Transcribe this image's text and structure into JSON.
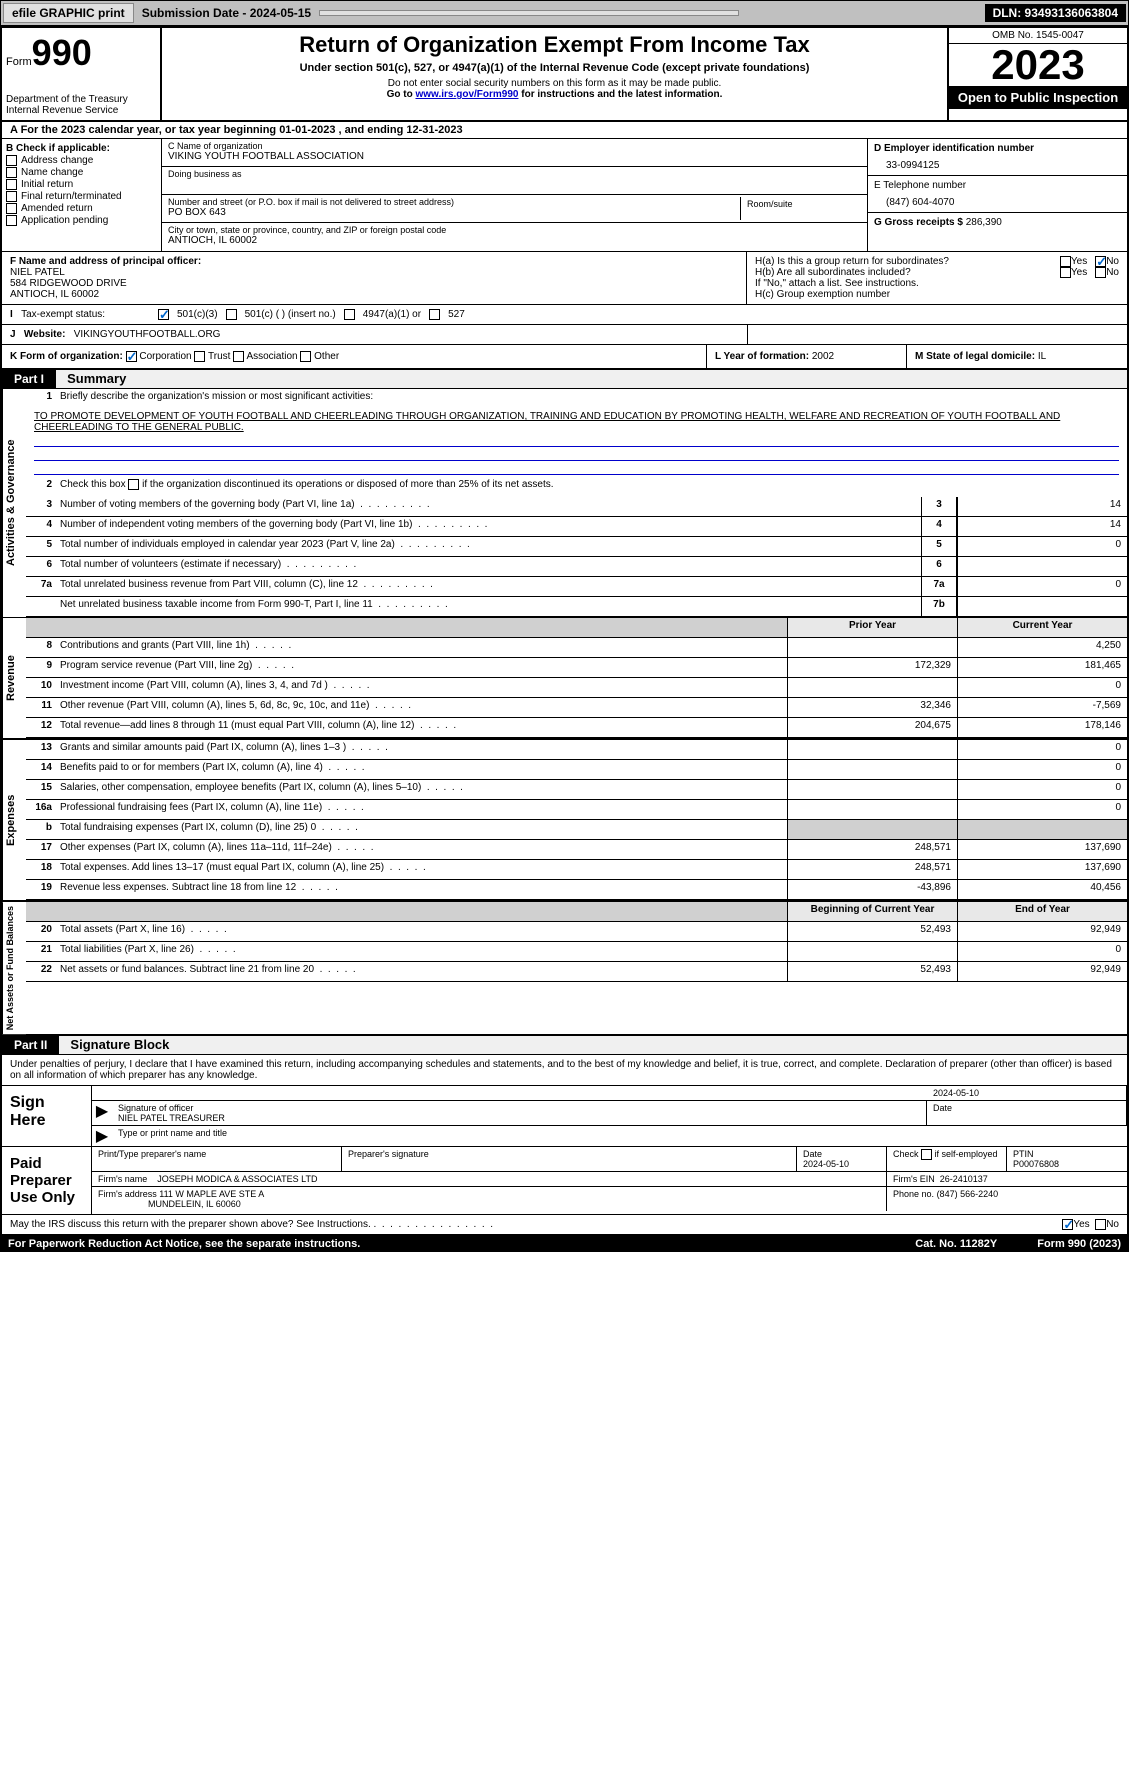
{
  "topbar": {
    "efile": "efile GRAPHIC print",
    "submission": "Submission Date - 2024-05-15",
    "dln": "DLN: 93493136063804"
  },
  "header": {
    "form_label": "Form",
    "form_num": "990",
    "dept": "Department of the Treasury Internal Revenue Service",
    "title": "Return of Organization Exempt From Income Tax",
    "sub": "Under section 501(c), 527, or 4947(a)(1) of the Internal Revenue Code (except private foundations)",
    "note1": "Do not enter social security numbers on this form as it may be made public.",
    "note2_pre": "Go to ",
    "note2_link": "www.irs.gov/Form990",
    "note2_post": " for instructions and the latest information.",
    "omb": "OMB No. 1545-0047",
    "year": "2023",
    "open": "Open to Public Inspection"
  },
  "sectionA": "A For the 2023 calendar year, or tax year beginning 01-01-2023   , and ending 12-31-2023",
  "checkB": {
    "label": "B Check if applicable:",
    "items": [
      "Address change",
      "Name change",
      "Initial return",
      "Final return/terminated",
      "Amended return",
      "Application pending"
    ]
  },
  "sectionC": {
    "name_label": "C Name of organization",
    "name": "VIKING YOUTH FOOTBALL ASSOCIATION",
    "dba_label": "Doing business as",
    "addr_label": "Number and street (or P.O. box if mail is not delivered to street address)",
    "addr": "PO BOX 643",
    "room_label": "Room/suite",
    "city_label": "City or town, state or province, country, and ZIP or foreign postal code",
    "city": "ANTIOCH, IL  60002"
  },
  "sectionD": {
    "label": "D Employer identification number",
    "ein": "33-0994125"
  },
  "sectionE": {
    "label": "E Telephone number",
    "phone": "(847) 604-4070"
  },
  "sectionG": {
    "label": "G Gross receipts $",
    "val": "286,390"
  },
  "sectionF": {
    "label": "F  Name and address of principal officer:",
    "name": "NIEL PATEL",
    "addr1": "584 RIDGEWOOD DRIVE",
    "addr2": "ANTIOCH, IL  60002"
  },
  "sectionH": {
    "a": "H(a)  Is this a group return for subordinates?",
    "b": "H(b)  Are all subordinates included?",
    "b_note": "If \"No,\" attach a list. See instructions.",
    "c": "H(c)  Group exemption number",
    "yes": "Yes",
    "no": "No"
  },
  "sectionI": {
    "label": "Tax-exempt status:",
    "opts": [
      "501(c)(3)",
      "501(c) (  ) (insert no.)",
      "4947(a)(1) or",
      "527"
    ]
  },
  "sectionJ": {
    "label": "Website:",
    "val": "VIKINGYOUTHFOOTBALL.ORG"
  },
  "sectionK": {
    "label": "K Form of organization:",
    "opts": [
      "Corporation",
      "Trust",
      "Association",
      "Other"
    ]
  },
  "sectionL": {
    "label": "L Year of formation:",
    "val": "2002"
  },
  "sectionM": {
    "label": "M State of legal domicile:",
    "val": "IL"
  },
  "part1": {
    "header": "Part I",
    "title": "Summary",
    "mission_label": "Briefly describe the organization's mission or most significant activities:",
    "mission": "TO PROMOTE DEVELOPMENT OF YOUTH FOOTBALL AND CHEERLEADING THROUGH ORGANIZATION, TRAINING AND EDUCATION BY PROMOTING HEALTH, WELFARE AND RECREATION OF YOUTH FOOTBALL AND CHEERLEADING TO THE GENERAL PUBLIC.",
    "line2": "Check this box      if the organization discontinued its operations or disposed of more than 25% of its net assets.",
    "vert": {
      "gov": "Activities & Governance",
      "rev": "Revenue",
      "exp": "Expenses",
      "net": "Net Assets or Fund Balances"
    },
    "prior_year": "Prior Year",
    "current_year": "Current Year",
    "begin_year": "Beginning of Current Year",
    "end_year": "End of Year",
    "rows_gov": [
      {
        "n": "3",
        "text": "Number of voting members of the governing body (Part VI, line 1a)",
        "ln": "3",
        "v": "14"
      },
      {
        "n": "4",
        "text": "Number of independent voting members of the governing body (Part VI, line 1b)",
        "ln": "4",
        "v": "14"
      },
      {
        "n": "5",
        "text": "Total number of individuals employed in calendar year 2023 (Part V, line 2a)",
        "ln": "5",
        "v": "0"
      },
      {
        "n": "6",
        "text": "Total number of volunteers (estimate if necessary)",
        "ln": "6",
        "v": ""
      },
      {
        "n": "7a",
        "text": "Total unrelated business revenue from Part VIII, column (C), line 12",
        "ln": "7a",
        "v": "0"
      },
      {
        "n": "",
        "text": "Net unrelated business taxable income from Form 990-T, Part I, line 11",
        "ln": "7b",
        "v": ""
      }
    ],
    "rows_rev": [
      {
        "n": "8",
        "text": "Contributions and grants (Part VIII, line 1h)",
        "p": "",
        "c": "4,250"
      },
      {
        "n": "9",
        "text": "Program service revenue (Part VIII, line 2g)",
        "p": "172,329",
        "c": "181,465"
      },
      {
        "n": "10",
        "text": "Investment income (Part VIII, column (A), lines 3, 4, and 7d )",
        "p": "",
        "c": "0"
      },
      {
        "n": "11",
        "text": "Other revenue (Part VIII, column (A), lines 5, 6d, 8c, 9c, 10c, and 11e)",
        "p": "32,346",
        "c": "-7,569"
      },
      {
        "n": "12",
        "text": "Total revenue—add lines 8 through 11 (must equal Part VIII, column (A), line 12)",
        "p": "204,675",
        "c": "178,146"
      }
    ],
    "rows_exp": [
      {
        "n": "13",
        "text": "Grants and similar amounts paid (Part IX, column (A), lines 1–3 )",
        "p": "",
        "c": "0"
      },
      {
        "n": "14",
        "text": "Benefits paid to or for members (Part IX, column (A), line 4)",
        "p": "",
        "c": "0"
      },
      {
        "n": "15",
        "text": "Salaries, other compensation, employee benefits (Part IX, column (A), lines 5–10)",
        "p": "",
        "c": "0"
      },
      {
        "n": "16a",
        "text": "Professional fundraising fees (Part IX, column (A), line 11e)",
        "p": "",
        "c": "0"
      },
      {
        "n": "b",
        "text": "Total fundraising expenses (Part IX, column (D), line 25) 0",
        "p": "shaded",
        "c": "shaded"
      },
      {
        "n": "17",
        "text": "Other expenses (Part IX, column (A), lines 11a–11d, 11f–24e)",
        "p": "248,571",
        "c": "137,690"
      },
      {
        "n": "18",
        "text": "Total expenses. Add lines 13–17 (must equal Part IX, column (A), line 25)",
        "p": "248,571",
        "c": "137,690"
      },
      {
        "n": "19",
        "text": "Revenue less expenses. Subtract line 18 from line 12",
        "p": "-43,896",
        "c": "40,456"
      }
    ],
    "rows_net": [
      {
        "n": "20",
        "text": "Total assets (Part X, line 16)",
        "p": "52,493",
        "c": "92,949"
      },
      {
        "n": "21",
        "text": "Total liabilities (Part X, line 26)",
        "p": "",
        "c": "0"
      },
      {
        "n": "22",
        "text": "Net assets or fund balances. Subtract line 21 from line 20",
        "p": "52,493",
        "c": "92,949"
      }
    ]
  },
  "part2": {
    "header": "Part II",
    "title": "Signature Block",
    "declare": "Under penalties of perjury, I declare that I have examined this return, including accompanying schedules and statements, and to the best of my knowledge and belief, it is true, correct, and complete. Declaration of preparer (other than officer) is based on all information of which preparer has any knowledge.",
    "sign_here": "Sign Here",
    "sig_officer": "Signature of officer",
    "sig_name": "NIEL PATEL  TREASURER",
    "sig_type": "Type or print name and title",
    "date": "Date",
    "date_val": "2024-05-10",
    "paid": "Paid Preparer Use Only",
    "prep_name_label": "Print/Type preparer's name",
    "prep_sig_label": "Preparer's signature",
    "prep_date": "2024-05-10",
    "check_self": "Check      if self-employed",
    "ptin_label": "PTIN",
    "ptin": "P00076808",
    "firm_name_label": "Firm's name",
    "firm_name": "JOSEPH MODICA & ASSOCIATES LTD",
    "firm_ein_label": "Firm's EIN",
    "firm_ein": "26-2410137",
    "firm_addr_label": "Firm's address",
    "firm_addr": "111 W MAPLE AVE STE A",
    "firm_city": "MUNDELEIN, IL  60060",
    "phone_label": "Phone no.",
    "phone": "(847) 566-2240",
    "discuss": "May the IRS discuss this return with the preparer shown above? See Instructions."
  },
  "footer": {
    "paperwork": "For Paperwork Reduction Act Notice, see the separate instructions.",
    "catno": "Cat. No. 11282Y",
    "formno": "Form 990 (2023)"
  }
}
